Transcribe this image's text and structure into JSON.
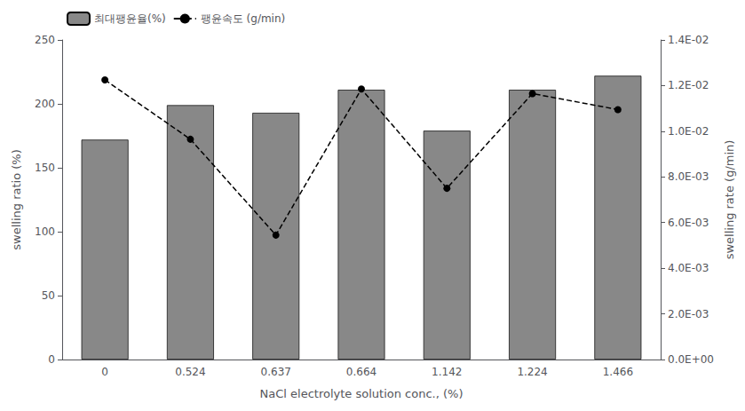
{
  "chart_data": {
    "type": "bar",
    "categories": [
      "0",
      "0.524",
      "0.637",
      "0.664",
      "1.142",
      "1.224",
      "1.466"
    ],
    "xlabel": "NaCl electrolyte solution conc., (%)",
    "ylabel": "swelling ratio (%)",
    "y2label": "swelling rate (g/min)",
    "ylim": [
      0,
      250
    ],
    "yticks": [
      0,
      50,
      100,
      150,
      200,
      250
    ],
    "y2lim": [
      0.0,
      0.014
    ],
    "y2ticks": [
      {
        "value": 0.0,
        "label": "0.0E+00"
      },
      {
        "value": 0.002,
        "label": "2.0E-03"
      },
      {
        "value": 0.004,
        "label": "4.0E-03"
      },
      {
        "value": 0.006,
        "label": "6.0E-03"
      },
      {
        "value": 0.008,
        "label": "8.0E-03"
      },
      {
        "value": 0.01,
        "label": "1.0E-02"
      },
      {
        "value": 0.012,
        "label": "1.2E-02"
      },
      {
        "value": 0.014,
        "label": "1.4E-02"
      }
    ],
    "grid": false,
    "legend": "upper left",
    "series": [
      {
        "name": "최대팽윤율(%)",
        "type": "bar",
        "color": "#888888",
        "values": [
          172,
          199,
          193,
          211,
          179,
          211,
          222
        ]
      },
      {
        "name": "팽윤속도 (g/min)",
        "type": "line",
        "axis": "y2",
        "color": "#000000",
        "line_style": "dashed",
        "marker": "circle",
        "values": [
          0.01225,
          0.00965,
          0.00545,
          0.01185,
          0.0075,
          0.01165,
          0.01095
        ]
      }
    ]
  }
}
